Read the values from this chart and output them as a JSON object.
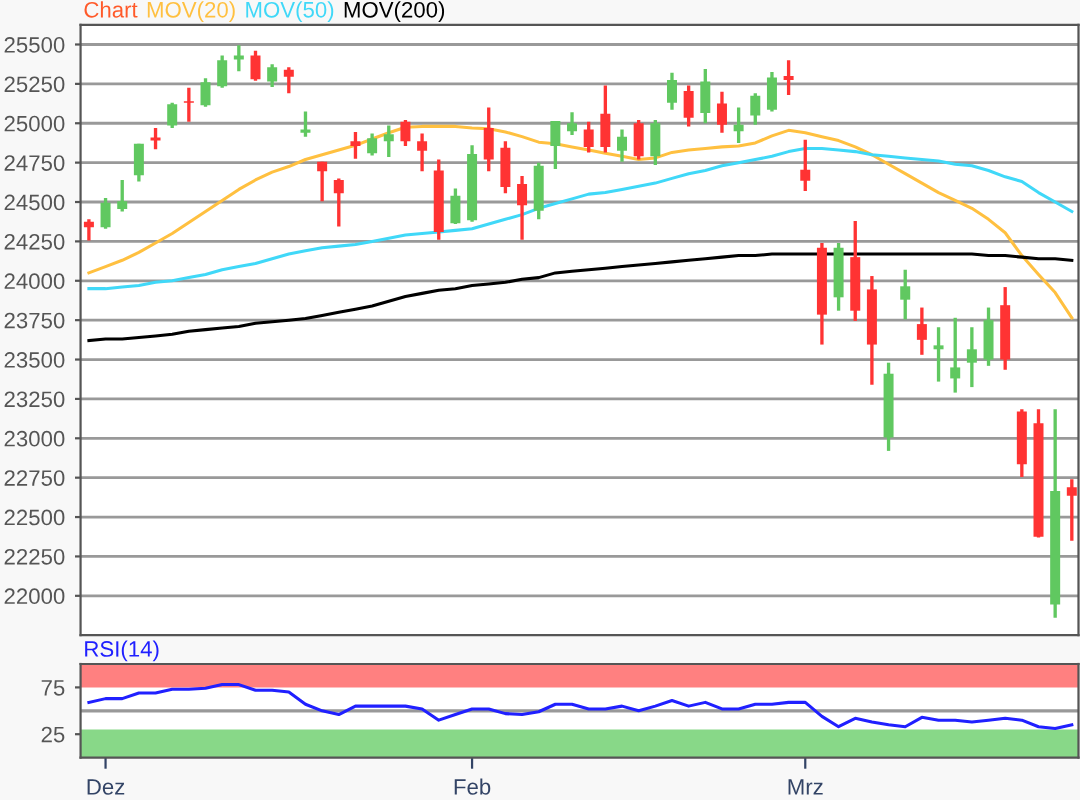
{
  "chart_data": [
    {
      "type": "candlestick",
      "title": "Chart",
      "legend": "top left",
      "tick_labels": "y",
      "grid": "y",
      "categories": [
        null,
        null,
        null,
        null,
        null,
        null,
        null,
        null,
        null,
        null,
        null,
        null,
        null,
        null,
        null,
        null,
        null,
        null,
        null,
        null,
        null,
        null,
        null,
        null,
        null,
        null,
        null,
        null,
        null,
        null,
        null,
        null,
        null,
        null,
        null,
        null,
        null,
        null,
        null,
        null,
        null,
        null,
        null,
        null,
        null,
        null,
        null,
        null,
        null,
        null,
        null,
        null,
        null,
        null,
        null,
        null,
        null,
        null,
        null,
        null
      ],
      "ohlc": [
        [
          24375,
          24390,
          24255,
          24340
        ],
        [
          24340,
          24525,
          24330,
          24495
        ],
        [
          24455,
          24640,
          24440,
          24505
        ],
        [
          24670,
          24870,
          24630,
          24870
        ],
        [
          24910,
          24970,
          24835,
          24890
        ],
        [
          24985,
          25130,
          24970,
          25120
        ],
        [
          25140,
          25225,
          25010,
          25130
        ],
        [
          25115,
          25285,
          25105,
          25260
        ],
        [
          25235,
          25430,
          25225,
          25400
        ],
        [
          25405,
          25495,
          25330,
          25430
        ],
        [
          25430,
          25460,
          25270,
          25280
        ],
        [
          25265,
          25375,
          25230,
          25355
        ],
        [
          25340,
          25355,
          25190,
          25295
        ],
        [
          24940,
          25075,
          24915,
          24960
        ],
        [
          24755,
          24755,
          24505,
          24695
        ],
        [
          24640,
          24650,
          24345,
          24555
        ],
        [
          24885,
          24945,
          24775,
          24855
        ],
        [
          24810,
          24935,
          24795,
          24905
        ],
        [
          24885,
          24985,
          24785,
          24930
        ],
        [
          25010,
          25020,
          24855,
          24885
        ],
        [
          24885,
          24935,
          24695,
          24825
        ],
        [
          24700,
          24770,
          24260,
          24310
        ],
        [
          24365,
          24585,
          24360,
          24540
        ],
        [
          24385,
          24860,
          24375,
          24805
        ],
        [
          24970,
          25100,
          24695,
          24770
        ],
        [
          24845,
          24885,
          24555,
          24595
        ],
        [
          24615,
          24665,
          24260,
          24480
        ],
        [
          24445,
          24750,
          24390,
          24730
        ],
        [
          24855,
          25015,
          24710,
          25015
        ],
        [
          24950,
          25070,
          24925,
          25000
        ],
        [
          24960,
          25010,
          24815,
          24850
        ],
        [
          25060,
          25240,
          24815,
          24850
        ],
        [
          24825,
          24960,
          24755,
          24915
        ],
        [
          25000,
          25020,
          24770,
          24790
        ],
        [
          24790,
          25020,
          24735,
          25000
        ],
        [
          25130,
          25320,
          25085,
          25275
        ],
        [
          25205,
          25240,
          24980,
          25035
        ],
        [
          25065,
          25345,
          25000,
          25265
        ],
        [
          25125,
          25200,
          24940,
          24990
        ],
        [
          24950,
          25100,
          24875,
          24990
        ],
        [
          25050,
          25190,
          24990,
          25175
        ],
        [
          25085,
          25325,
          25075,
          25290
        ],
        [
          25300,
          25400,
          25180,
          25275
        ],
        [
          24705,
          24895,
          24570,
          24635
        ],
        [
          24210,
          24240,
          23595,
          23785
        ],
        [
          23895,
          24240,
          23810,
          24210
        ],
        [
          24150,
          24380,
          23745,
          23810
        ],
        [
          23945,
          24030,
          23340,
          23595
        ],
        [
          23005,
          23480,
          22920,
          23410
        ],
        [
          23880,
          24070,
          23755,
          23965
        ],
        [
          23725,
          23830,
          23530,
          23625
        ],
        [
          23565,
          23705,
          23360,
          23590
        ],
        [
          23380,
          23765,
          23290,
          23450
        ],
        [
          23480,
          23705,
          23325,
          23565
        ],
        [
          23500,
          23830,
          23460,
          23750
        ],
        [
          23845,
          23960,
          23435,
          23500
        ],
        [
          23170,
          23185,
          22755,
          22835
        ],
        [
          23095,
          23185,
          22370,
          22375
        ],
        [
          21945,
          23185,
          21860,
          22665
        ],
        [
          22690,
          22740,
          22350,
          22635
        ]
      ],
      "series": [
        {
          "type": "line",
          "name": "MOV(20)",
          "color": "#ffc040",
          "values": [
            24050,
            24090,
            24130,
            24180,
            24240,
            24300,
            24370,
            24440,
            24510,
            24580,
            24640,
            24690,
            24725,
            24770,
            24800,
            24830,
            24860,
            24900,
            24940,
            24975,
            24980,
            24980,
            24980,
            24970,
            24965,
            24945,
            24915,
            24880,
            24870,
            24850,
            24830,
            24810,
            24790,
            24770,
            24780,
            24815,
            24830,
            24840,
            24850,
            24855,
            24875,
            24920,
            24955,
            24940,
            24915,
            24890,
            24850,
            24800,
            24740,
            24680,
            24620,
            24560,
            24510,
            24460,
            24390,
            24305,
            24160,
            24040,
            23925,
            23765
          ]
        },
        {
          "type": "line",
          "name": "MOV(50)",
          "color": "#40d8f8",
          "values": [
            23950,
            23950,
            23960,
            23970,
            23990,
            24000,
            24020,
            24040,
            24070,
            24090,
            24110,
            24140,
            24170,
            24190,
            24210,
            24220,
            24230,
            24250,
            24270,
            24290,
            24300,
            24310,
            24320,
            24330,
            24360,
            24390,
            24420,
            24460,
            24490,
            24520,
            24550,
            24560,
            24580,
            24600,
            24620,
            24650,
            24680,
            24700,
            24730,
            24750,
            24770,
            24790,
            24820,
            24840,
            24840,
            24830,
            24820,
            24800,
            24790,
            24780,
            24770,
            24760,
            24740,
            24730,
            24700,
            24660,
            24630,
            24560,
            24500,
            24440
          ]
        },
        {
          "type": "line",
          "name": "MOV(200)",
          "color": "#000000",
          "values": [
            23620,
            23630,
            23630,
            23640,
            23650,
            23660,
            23680,
            23690,
            23700,
            23710,
            23730,
            23740,
            23750,
            23760,
            23780,
            23800,
            23820,
            23840,
            23870,
            23900,
            23920,
            23940,
            23950,
            23970,
            23980,
            23990,
            24010,
            24020,
            24050,
            24060,
            24070,
            24080,
            24090,
            24100,
            24110,
            24120,
            24130,
            24140,
            24150,
            24160,
            24160,
            24170,
            24170,
            24170,
            24170,
            24170,
            24170,
            24170,
            24170,
            24170,
            24170,
            24170,
            24170,
            24170,
            24160,
            24160,
            24150,
            24140,
            24140,
            24130
          ]
        }
      ],
      "ylim": [
        21750,
        25625
      ],
      "yticks": [
        22000,
        22250,
        22500,
        22750,
        23000,
        23250,
        23500,
        23750,
        24000,
        24250,
        24500,
        24750,
        25000,
        25250,
        25500
      ]
    },
    {
      "type": "line",
      "title": "RSI(14)",
      "grid": false,
      "categories": [
        null,
        "Dez",
        null,
        null,
        null,
        null,
        null,
        null,
        null,
        null,
        null,
        null,
        null,
        null,
        null,
        null,
        null,
        null,
        null,
        null,
        null,
        null,
        null,
        "Feb",
        null,
        null,
        null,
        null,
        null,
        null,
        null,
        null,
        null,
        null,
        null,
        null,
        null,
        null,
        null,
        null,
        null,
        null,
        null,
        "Mrz",
        null,
        null,
        null,
        null,
        null,
        null,
        null,
        null,
        null,
        null,
        null,
        null,
        null,
        null,
        null,
        null
      ],
      "series": [
        {
          "color": "#2020ff",
          "values": [
            59,
            63,
            63,
            69,
            69,
            73,
            73,
            74,
            78,
            78,
            72,
            72,
            70,
            57,
            50,
            46,
            55,
            55,
            55,
            55,
            52,
            40,
            46,
            52,
            52,
            47,
            46,
            49,
            57,
            57,
            52,
            52,
            55,
            50,
            55,
            61,
            55,
            59,
            52,
            52,
            57,
            57,
            59,
            59,
            44,
            33,
            42,
            38,
            35,
            33,
            43,
            40,
            40,
            38,
            40,
            42,
            40,
            33,
            31,
            35
          ]
        }
      ],
      "bands": [
        {
          "axis": "y",
          "from": 75,
          "to": 100,
          "color": "#ff8080"
        },
        {
          "axis": "y",
          "from": 0,
          "to": 30,
          "color": "#88d888"
        }
      ],
      "ref_lines": [
        {
          "axis": "y",
          "value": 50,
          "color": "#999999"
        }
      ],
      "ylim": [
        0,
        100
      ],
      "yticks": [
        25,
        75
      ]
    }
  ]
}
